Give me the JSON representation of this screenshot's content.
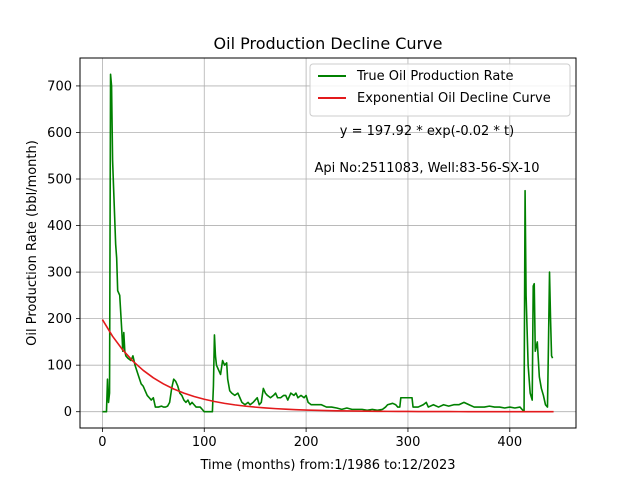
{
  "chart_data": {
    "type": "line",
    "title": "Oil Production Decline Curve",
    "xlabel": "Time (months) from:1/1986 to:12/2023",
    "ylabel": "Oil Production Rate (bbl/month)",
    "xlim": [
      -22,
      465
    ],
    "ylim": [
      -35,
      760
    ],
    "x_ticks": [
      0,
      100,
      200,
      300,
      400
    ],
    "y_ticks": [
      0,
      100,
      200,
      300,
      400,
      500,
      600,
      700
    ],
    "grid": true,
    "legend_position": "top-right",
    "annotations": [
      "y = 197.92 * exp(-0.02 * t)",
      "Api No:2511083, Well:83-56-SX-10"
    ],
    "series": [
      {
        "name": "True Oil Production Rate",
        "color": "#008000",
        "points": [
          [
            0,
            0
          ],
          [
            4,
            0
          ],
          [
            5,
            70
          ],
          [
            6,
            20
          ],
          [
            7,
            40
          ],
          [
            8,
            725
          ],
          [
            9,
            700
          ],
          [
            10,
            540
          ],
          [
            11,
            480
          ],
          [
            12,
            420
          ],
          [
            13,
            360
          ],
          [
            14,
            330
          ],
          [
            15,
            260
          ],
          [
            17,
            250
          ],
          [
            19,
            175
          ],
          [
            20,
            130
          ],
          [
            21,
            170
          ],
          [
            22,
            130
          ],
          [
            23,
            120
          ],
          [
            25,
            115
          ],
          [
            28,
            110
          ],
          [
            30,
            120
          ],
          [
            32,
            100
          ],
          [
            35,
            80
          ],
          [
            38,
            60
          ],
          [
            40,
            55
          ],
          [
            42,
            45
          ],
          [
            44,
            35
          ],
          [
            46,
            30
          ],
          [
            48,
            25
          ],
          [
            50,
            30
          ],
          [
            52,
            10
          ],
          [
            55,
            10
          ],
          [
            58,
            12
          ],
          [
            60,
            10
          ],
          [
            62,
            10
          ],
          [
            64,
            12
          ],
          [
            66,
            20
          ],
          [
            68,
            50
          ],
          [
            70,
            70
          ],
          [
            72,
            65
          ],
          [
            74,
            55
          ],
          [
            76,
            40
          ],
          [
            78,
            35
          ],
          [
            80,
            25
          ],
          [
            82,
            20
          ],
          [
            84,
            25
          ],
          [
            86,
            15
          ],
          [
            88,
            20
          ],
          [
            90,
            15
          ],
          [
            92,
            10
          ],
          [
            94,
            10
          ],
          [
            96,
            10
          ],
          [
            98,
            5
          ],
          [
            100,
            0
          ],
          [
            105,
            0
          ],
          [
            108,
            0
          ],
          [
            109,
            55
          ],
          [
            110,
            165
          ],
          [
            111,
            120
          ],
          [
            112,
            100
          ],
          [
            114,
            90
          ],
          [
            116,
            80
          ],
          [
            118,
            110
          ],
          [
            120,
            100
          ],
          [
            122,
            105
          ],
          [
            123,
            70
          ],
          [
            125,
            45
          ],
          [
            127,
            40
          ],
          [
            130,
            35
          ],
          [
            133,
            40
          ],
          [
            135,
            30
          ],
          [
            137,
            20
          ],
          [
            140,
            15
          ],
          [
            143,
            20
          ],
          [
            145,
            15
          ],
          [
            148,
            20
          ],
          [
            150,
            25
          ],
          [
            152,
            30
          ],
          [
            154,
            15
          ],
          [
            156,
            20
          ],
          [
            158,
            50
          ],
          [
            160,
            40
          ],
          [
            162,
            35
          ],
          [
            165,
            30
          ],
          [
            168,
            35
          ],
          [
            170,
            40
          ],
          [
            172,
            30
          ],
          [
            175,
            30
          ],
          [
            178,
            35
          ],
          [
            180,
            35
          ],
          [
            182,
            25
          ],
          [
            185,
            40
          ],
          [
            188,
            35
          ],
          [
            190,
            40
          ],
          [
            192,
            30
          ],
          [
            195,
            35
          ],
          [
            198,
            30
          ],
          [
            200,
            35
          ],
          [
            202,
            20
          ],
          [
            205,
            15
          ],
          [
            210,
            15
          ],
          [
            215,
            15
          ],
          [
            220,
            10
          ],
          [
            225,
            10
          ],
          [
            230,
            8
          ],
          [
            235,
            5
          ],
          [
            240,
            8
          ],
          [
            245,
            5
          ],
          [
            250,
            5
          ],
          [
            255,
            5
          ],
          [
            260,
            3
          ],
          [
            265,
            5
          ],
          [
            270,
            3
          ],
          [
            275,
            5
          ],
          [
            278,
            10
          ],
          [
            280,
            15
          ],
          [
            285,
            18
          ],
          [
            288,
            15
          ],
          [
            290,
            10
          ],
          [
            292,
            10
          ],
          [
            293,
            30
          ],
          [
            300,
            30
          ],
          [
            304,
            30
          ],
          [
            305,
            10
          ],
          [
            310,
            10
          ],
          [
            315,
            15
          ],
          [
            318,
            20
          ],
          [
            320,
            10
          ],
          [
            325,
            15
          ],
          [
            330,
            10
          ],
          [
            335,
            15
          ],
          [
            340,
            12
          ],
          [
            345,
            15
          ],
          [
            350,
            15
          ],
          [
            355,
            20
          ],
          [
            360,
            15
          ],
          [
            365,
            10
          ],
          [
            370,
            10
          ],
          [
            375,
            10
          ],
          [
            380,
            12
          ],
          [
            385,
            10
          ],
          [
            390,
            10
          ],
          [
            395,
            8
          ],
          [
            400,
            10
          ],
          [
            405,
            8
          ],
          [
            410,
            10
          ],
          [
            412,
            5
          ],
          [
            414,
            0
          ],
          [
            415,
            475
          ],
          [
            416,
            250
          ],
          [
            418,
            100
          ],
          [
            420,
            40
          ],
          [
            422,
            25
          ],
          [
            423,
            270
          ],
          [
            424,
            275
          ],
          [
            425,
            130
          ],
          [
            427,
            150
          ],
          [
            429,
            75
          ],
          [
            431,
            50
          ],
          [
            433,
            35
          ],
          [
            435,
            15
          ],
          [
            437,
            10
          ],
          [
            438,
            150
          ],
          [
            439,
            300
          ],
          [
            440,
            200
          ],
          [
            441,
            120
          ],
          [
            442,
            115
          ]
        ]
      },
      {
        "name": "Exponential Oil Decline Curve",
        "color": "#e31a1c",
        "points": [
          [
            0,
            197.92
          ],
          [
            10,
            162.04
          ],
          [
            20,
            132.67
          ],
          [
            30,
            108.62
          ],
          [
            40,
            88.93
          ],
          [
            50,
            72.81
          ],
          [
            60,
            59.61
          ],
          [
            70,
            48.8
          ],
          [
            80,
            39.96
          ],
          [
            90,
            32.71
          ],
          [
            100,
            26.79
          ],
          [
            110,
            21.93
          ],
          [
            120,
            17.95
          ],
          [
            130,
            14.7
          ],
          [
            140,
            12.03
          ],
          [
            150,
            9.85
          ],
          [
            160,
            8.07
          ],
          [
            170,
            6.61
          ],
          [
            180,
            5.41
          ],
          [
            190,
            4.43
          ],
          [
            200,
            3.63
          ],
          [
            210,
            2.97
          ],
          [
            220,
            2.43
          ],
          [
            230,
            1.99
          ],
          [
            240,
            1.63
          ],
          [
            250,
            1.33
          ],
          [
            260,
            1.09
          ],
          [
            270,
            0.89
          ],
          [
            280,
            0.73
          ],
          [
            290,
            0.6
          ],
          [
            300,
            0.49
          ],
          [
            310,
            0.4
          ],
          [
            320,
            0.33
          ],
          [
            330,
            0.27
          ],
          [
            340,
            0.22
          ],
          [
            350,
            0.18
          ],
          [
            360,
            0.15
          ],
          [
            370,
            0.12
          ],
          [
            380,
            0.1
          ],
          [
            390,
            0.08
          ],
          [
            400,
            0.07
          ],
          [
            410,
            0.05
          ],
          [
            420,
            0.04
          ],
          [
            430,
            0.04
          ],
          [
            443,
            0.03
          ]
        ]
      }
    ]
  }
}
